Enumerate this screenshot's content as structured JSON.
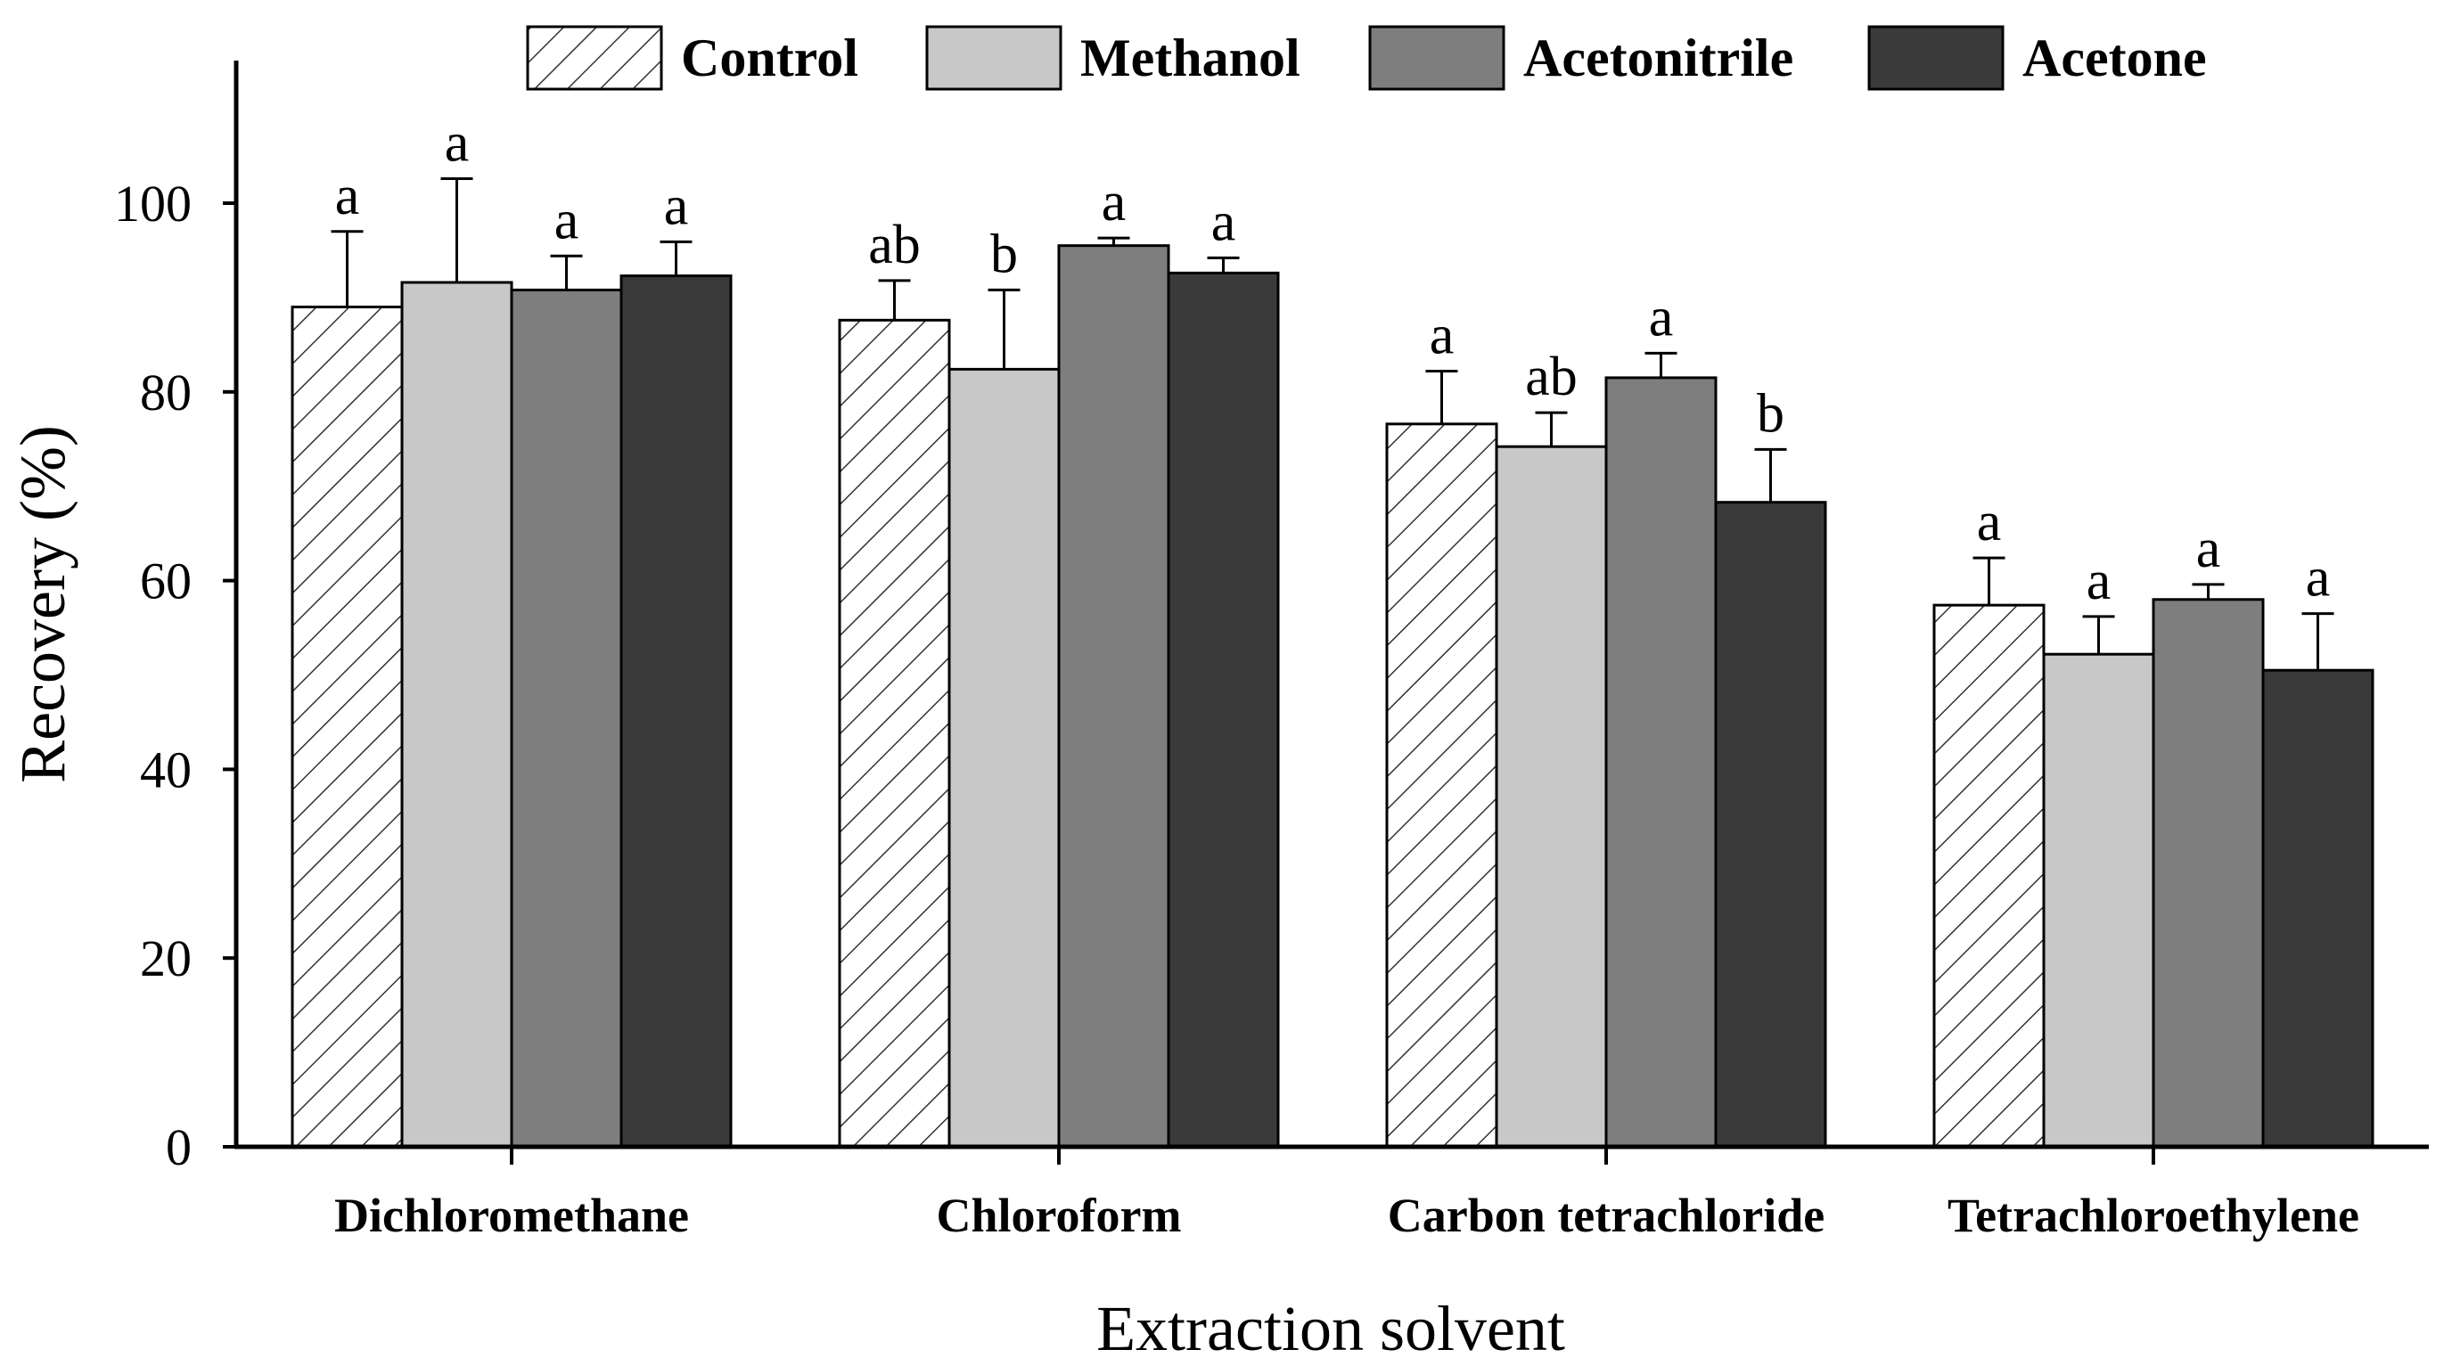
{
  "colors": {
    "background": "#ffffff",
    "axis": "#000000",
    "control_hatch": "#333333",
    "methanol": "#c8c8c8",
    "acetonitrile": "#7e7e7e",
    "acetone": "#3a3a3a"
  },
  "chart_data": {
    "type": "bar",
    "title": "",
    "xlabel": "Extraction solvent",
    "ylabel": "Recovery (%)",
    "ylim": [
      0,
      115
    ],
    "yticks": [
      0,
      20,
      40,
      60,
      80,
      100
    ],
    "grid": false,
    "legend_position": "top",
    "categories": [
      "Dichloromethane",
      "Chloroform",
      "Carbon tetrachloride",
      "Tetrachloroethylene"
    ],
    "series": [
      {
        "name": "Control",
        "style": "hatch",
        "values": [
          89,
          87.6,
          76.6,
          57.4
        ],
        "errors": [
          8,
          4.2,
          5.6,
          5
        ],
        "letters": [
          "a",
          "ab",
          "a",
          "a"
        ]
      },
      {
        "name": "Methanol",
        "style": "solid",
        "values": [
          91.6,
          82.4,
          74.2,
          52.2
        ],
        "errors": [
          11,
          8.4,
          3.6,
          4
        ],
        "letters": [
          "a",
          "b",
          "ab",
          "a"
        ]
      },
      {
        "name": "Acetonitrile",
        "style": "solid",
        "values": [
          90.8,
          95.5,
          81.5,
          58
        ],
        "errors": [
          3.6,
          0.8,
          2.6,
          1.6
        ],
        "letters": [
          "a",
          "a",
          "a",
          "a"
        ]
      },
      {
        "name": "Acetone",
        "style": "solid",
        "values": [
          92.3,
          92.6,
          68.3,
          50.5
        ],
        "errors": [
          3.6,
          1.6,
          5.6,
          6
        ],
        "letters": [
          "a",
          "a",
          "b",
          "a"
        ]
      }
    ]
  }
}
